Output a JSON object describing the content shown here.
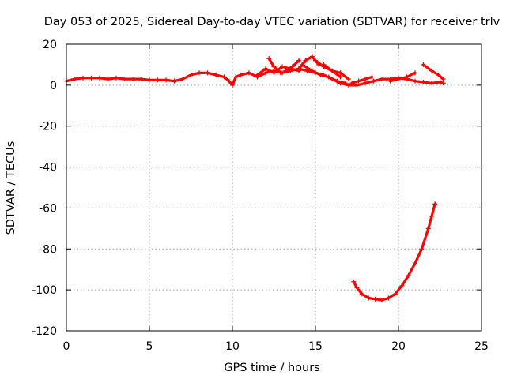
{
  "chart_data": {
    "type": "scatter",
    "title": "Day 053 of 2025, Sidereal Day-to-day VTEC variation (SDTVAR) for receiver trlv",
    "xlabel": "GPS time / hours",
    "ylabel": "SDTVAR / TECUs",
    "xlim": [
      0,
      25
    ],
    "ylim": [
      -120,
      20
    ],
    "xticks": [
      0,
      5,
      10,
      15,
      20,
      25
    ],
    "yticks": [
      20,
      0,
      -20,
      -40,
      -60,
      -80,
      -100,
      -120
    ],
    "grid": true,
    "color": "#ff0000",
    "series": [
      {
        "x": [
          0.0,
          0.5,
          1.0,
          1.5,
          2.0,
          2.5,
          3.0,
          3.5,
          4.0,
          4.5,
          5.0,
          5.5,
          6.0,
          6.5,
          7.0,
          7.5,
          8.0,
          8.5,
          9.0,
          9.5,
          9.8,
          10.0,
          10.2,
          10.5,
          11.0,
          11.5,
          12.0,
          12.5,
          13.0,
          13.5,
          14.0,
          14.5,
          15.0,
          15.5,
          16.0,
          16.5,
          17.0,
          17.5,
          18.0,
          18.5,
          19.0,
          19.5,
          20.0,
          20.5,
          21.0,
          21.5,
          22.0,
          22.5,
          22.7
        ],
        "y": [
          2,
          3,
          3.5,
          3.5,
          3.5,
          3,
          3.5,
          3,
          3,
          3,
          2.5,
          2.5,
          2.5,
          2,
          3,
          5,
          6,
          6,
          5,
          4,
          2,
          0,
          4,
          5,
          6,
          4,
          6,
          7,
          6,
          7,
          8,
          7,
          6,
          5,
          3,
          1,
          0,
          0,
          1,
          2,
          3,
          3,
          3.5,
          3,
          2,
          1.5,
          1,
          1.5,
          1
        ]
      },
      {
        "x": [
          11.5,
          12.0,
          12.5,
          13.0,
          13.5,
          14.0
        ],
        "y": [
          5,
          8,
          6,
          9,
          8,
          7
        ]
      },
      {
        "x": [
          12.2,
          12.5,
          12.9
        ],
        "y": [
          13,
          9,
          6
        ]
      },
      {
        "x": [
          13.2,
          13.6,
          14.0
        ],
        "y": [
          7,
          9,
          12
        ]
      },
      {
        "x": [
          14.0,
          14.4,
          14.8,
          15.2
        ],
        "y": [
          8,
          12,
          14,
          10
        ]
      },
      {
        "x": [
          15.0,
          15.5,
          16.0,
          16.5,
          17.0
        ],
        "y": [
          12,
          9,
          7,
          6,
          3
        ]
      },
      {
        "x": [
          14.2,
          14.8,
          15.3,
          15.8,
          16.3,
          16.8
        ],
        "y": [
          10,
          7,
          5,
          4,
          2,
          1
        ]
      },
      {
        "x": [
          15.5,
          16.0,
          16.5
        ],
        "y": [
          10,
          7,
          4
        ]
      },
      {
        "x": [
          17.2,
          17.6,
          18.0,
          18.4
        ],
        "y": [
          1,
          2,
          3,
          4
        ]
      },
      {
        "x": [
          19.5,
          20.0,
          20.5,
          21.0
        ],
        "y": [
          2,
          3,
          4,
          6
        ]
      },
      {
        "x": [
          21.5,
          22.0,
          22.4,
          22.7
        ],
        "y": [
          10,
          7,
          5,
          3
        ]
      },
      {
        "x": [
          17.3,
          17.5,
          17.8,
          18.2,
          18.6,
          19.0,
          19.4,
          19.8,
          20.2,
          20.6,
          21.0,
          21.4,
          21.8,
          22.0,
          22.2
        ],
        "y": [
          -96,
          -99,
          -102,
          -104,
          -104.5,
          -105,
          -104,
          -102,
          -98,
          -93,
          -87,
          -80,
          -70,
          -64,
          -58
        ]
      }
    ]
  }
}
